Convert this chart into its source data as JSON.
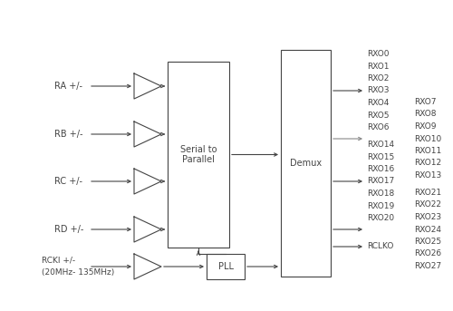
{
  "bg_color": "#ffffff",
  "line_color": "#444444",
  "text_color": "#444444",
  "figsize": [
    5.0,
    3.43
  ],
  "dpi": 100,
  "inputs": [
    "RA +/-",
    "RB +/-",
    "RC +/-",
    "RD +/-"
  ],
  "clock_input_line1": "RCKI +/-",
  "clock_input_line2": "(20MHz- 135MHz)",
  "serial_to_parallel_label": "Serial to\nParallel",
  "demux_label": "Demux",
  "pll_label": "PLL",
  "font_size": 7.0,
  "small_font_size": 6.5
}
